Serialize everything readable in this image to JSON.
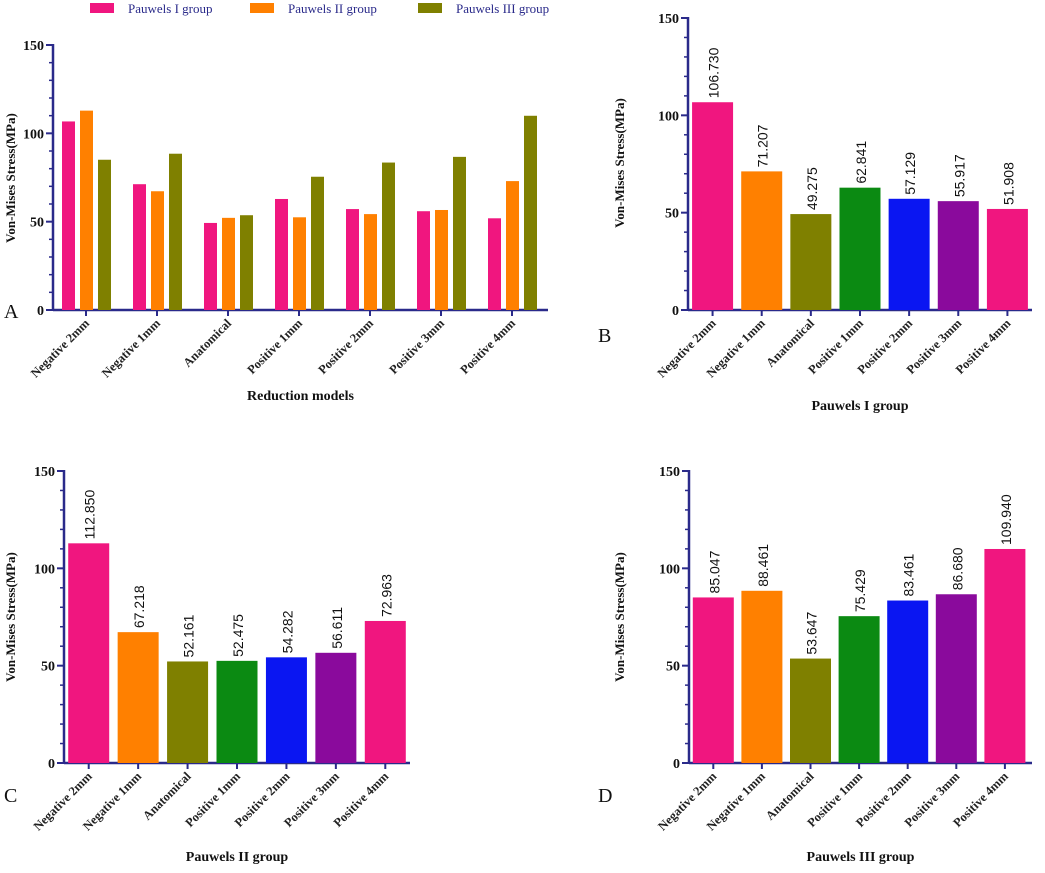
{
  "figure": {
    "legend": [
      {
        "label": "Pauwels I group",
        "color": "#F0167F"
      },
      {
        "label": "Pauwels II group",
        "color": "#FF8000"
      },
      {
        "label": "Pauwels III group",
        "color": "#7F8000"
      }
    ]
  },
  "chart_data": [
    {
      "panel": "A",
      "type": "bar",
      "title": "",
      "xlabel": "Reduction models",
      "ylabel": "Von-Mises Stress(MPa)",
      "ylim": [
        0,
        150
      ],
      "yticks": [
        "0",
        "50",
        "100",
        "150"
      ],
      "categories": [
        "Negative 2mm",
        "Negative 1mm",
        "Anatomical",
        "Positive 1mm",
        "Positive 2mm",
        "Positive 3mm",
        "Positive 4mm"
      ],
      "series": [
        {
          "name": "Pauwels I group",
          "color": "#F0167F",
          "values": [
            106.73,
            71.207,
            49.275,
            62.841,
            57.129,
            55.917,
            51.908
          ]
        },
        {
          "name": "Pauwels II group",
          "color": "#FF8000",
          "values": [
            112.85,
            67.218,
            52.161,
            52.475,
            54.282,
            56.611,
            72.963
          ]
        },
        {
          "name": "Pauwels III group",
          "color": "#7F8000",
          "values": [
            85.047,
            88.461,
            53.647,
            75.429,
            83.461,
            86.68,
            109.94
          ]
        }
      ],
      "legend": "top"
    },
    {
      "panel": "B",
      "type": "bar",
      "title": "",
      "xlabel": "Pauwels I group",
      "ylabel": "Von-Mises Stress(MPa)",
      "ylim": [
        0,
        150
      ],
      "yticks": [
        "0",
        "50",
        "100",
        "150"
      ],
      "categories": [
        "Negative 2mm",
        "Negative 1mm",
        "Anatomical",
        "Positive 1mm",
        "Positive 2mm",
        "Positive 3mm",
        "Positive 4mm"
      ],
      "values": [
        106.73,
        71.207,
        49.275,
        62.841,
        57.129,
        55.917,
        51.908
      ],
      "value_labels": [
        "106.730",
        "71.207",
        "49.275",
        "62.841",
        "57.129",
        "55.917",
        "51.908"
      ],
      "colors": [
        "#F0167F",
        "#FF8000",
        "#7F8000",
        "#0B8A12",
        "#0A16F2",
        "#8A0A9C",
        "#F0167F"
      ]
    },
    {
      "panel": "C",
      "type": "bar",
      "title": "",
      "xlabel": "Pauwels II group",
      "ylabel": "Von-Mises Stress(MPa)",
      "ylim": [
        0,
        150
      ],
      "yticks": [
        "0",
        "50",
        "100",
        "150"
      ],
      "categories": [
        "Negative 2mm",
        "Negative 1mm",
        "Anatomical",
        "Positive 1mm",
        "Positive 2mm",
        "Positive 3mm",
        "Positive 4mm"
      ],
      "values": [
        112.85,
        67.218,
        52.161,
        52.475,
        54.282,
        56.611,
        72.963
      ],
      "value_labels": [
        "112.850",
        "67.218",
        "52.161",
        "52.475",
        "54.282",
        "56.611",
        "72.963"
      ],
      "colors": [
        "#F0167F",
        "#FF8000",
        "#7F8000",
        "#0B8A12",
        "#0A16F2",
        "#8A0A9C",
        "#F0167F"
      ]
    },
    {
      "panel": "D",
      "type": "bar",
      "title": "",
      "xlabel": "Pauwels III group",
      "ylabel": "Von-Mises Stress(MPa)",
      "ylim": [
        0,
        150
      ],
      "yticks": [
        "0",
        "50",
        "100",
        "150"
      ],
      "categories": [
        "Negative 2mm",
        "Negative 1mm",
        "Anatomical",
        "Positive 1mm",
        "Positive 2mm",
        "Positive 3mm",
        "Positive 4mm"
      ],
      "values": [
        85.047,
        88.461,
        53.647,
        75.429,
        83.461,
        86.68,
        109.94
      ],
      "value_labels": [
        "85.047",
        "88.461",
        "53.647",
        "75.429",
        "83.461",
        "86.680",
        "109.940"
      ],
      "colors": [
        "#F0167F",
        "#FF8000",
        "#7F8000",
        "#0B8A12",
        "#0A16F2",
        "#8A0A9C",
        "#F0167F"
      ]
    }
  ]
}
